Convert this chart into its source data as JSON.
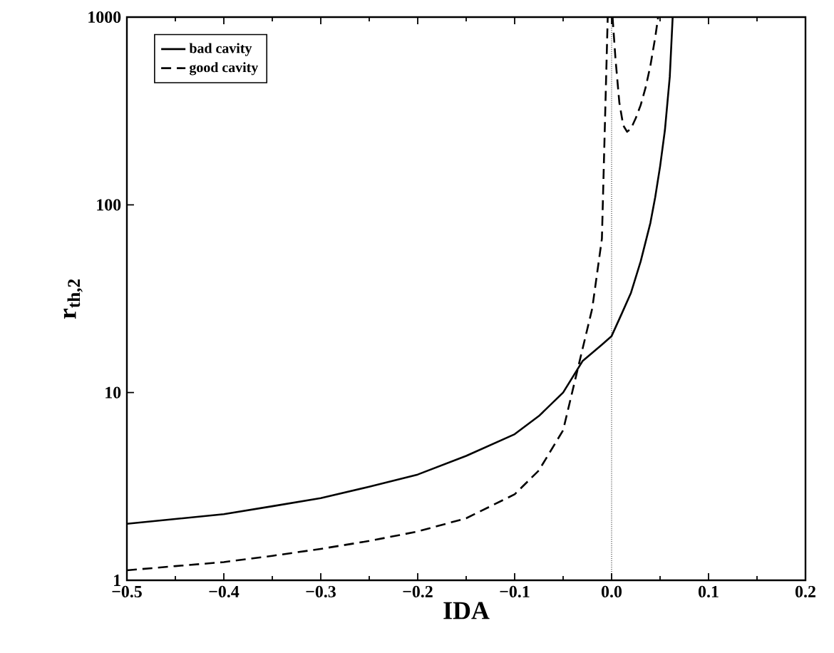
{
  "chart_data": {
    "type": "line",
    "xlabel": "IDA",
    "ylabel": "r$_{th,2}$",
    "log": "y",
    "grid": false,
    "legend": "top left",
    "marker": "none",
    "xlim": [
      -0.5,
      0.2
    ],
    "xticks": [
      {
        "value": -0.5,
        "label": "−0.5"
      },
      {
        "value": -0.4,
        "label": "−0.4"
      },
      {
        "value": -0.3,
        "label": "−0.3"
      },
      {
        "value": -0.2,
        "label": "−0.2"
      },
      {
        "value": -0.1,
        "label": "−0.1"
      },
      {
        "value": 0,
        "label": "0.0"
      },
      0.1,
      0.2
    ],
    "ylim": [
      1,
      1000
    ],
    "yticks": [
      1,
      10,
      100,
      1000
    ],
    "ref_lines": [
      {
        "axis": "x",
        "value": 0,
        "color": "#000000",
        "line_style": "dotted"
      }
    ],
    "series": [
      {
        "name": "bad cavity",
        "color": "#000000",
        "line_style": "solid",
        "x": [
          -0.5,
          -0.45,
          -0.4,
          -0.35,
          -0.3,
          -0.25,
          -0.2,
          -0.15,
          -0.1,
          -0.075,
          -0.05,
          -0.03,
          -0.01,
          0,
          0.01,
          0.02,
          0.03,
          0.04,
          0.045,
          0.05,
          0.055,
          0.06,
          0.063
        ],
        "values": [
          2.0,
          2.12,
          2.25,
          2.48,
          2.74,
          3.15,
          3.66,
          4.6,
          6.0,
          7.5,
          10,
          14.7,
          18,
          20,
          26,
          34,
          50,
          80,
          110,
          160,
          250,
          480,
          1000
        ]
      },
      {
        "name": "good cavity",
        "color": "#000000",
        "line_style": "dashed",
        "x": [
          -0.5,
          -0.45,
          -0.4,
          -0.35,
          -0.3,
          -0.25,
          -0.2,
          -0.15,
          -0.1,
          -0.075,
          -0.05,
          -0.033,
          -0.02,
          -0.01,
          -0.004,
          null,
          0.001,
          0.004,
          0.008,
          0.012,
          0.016,
          0.02,
          0.025,
          0.03,
          0.035,
          0.04,
          0.045,
          0.048
        ],
        "values": [
          1.13,
          1.19,
          1.25,
          1.35,
          1.47,
          1.62,
          1.82,
          2.14,
          2.87,
          3.85,
          6.3,
          14.7,
          28,
          66,
          1000,
          null,
          1000,
          600,
          350,
          265,
          245,
          255,
          290,
          340,
          420,
          550,
          780,
          1000
        ]
      }
    ]
  }
}
